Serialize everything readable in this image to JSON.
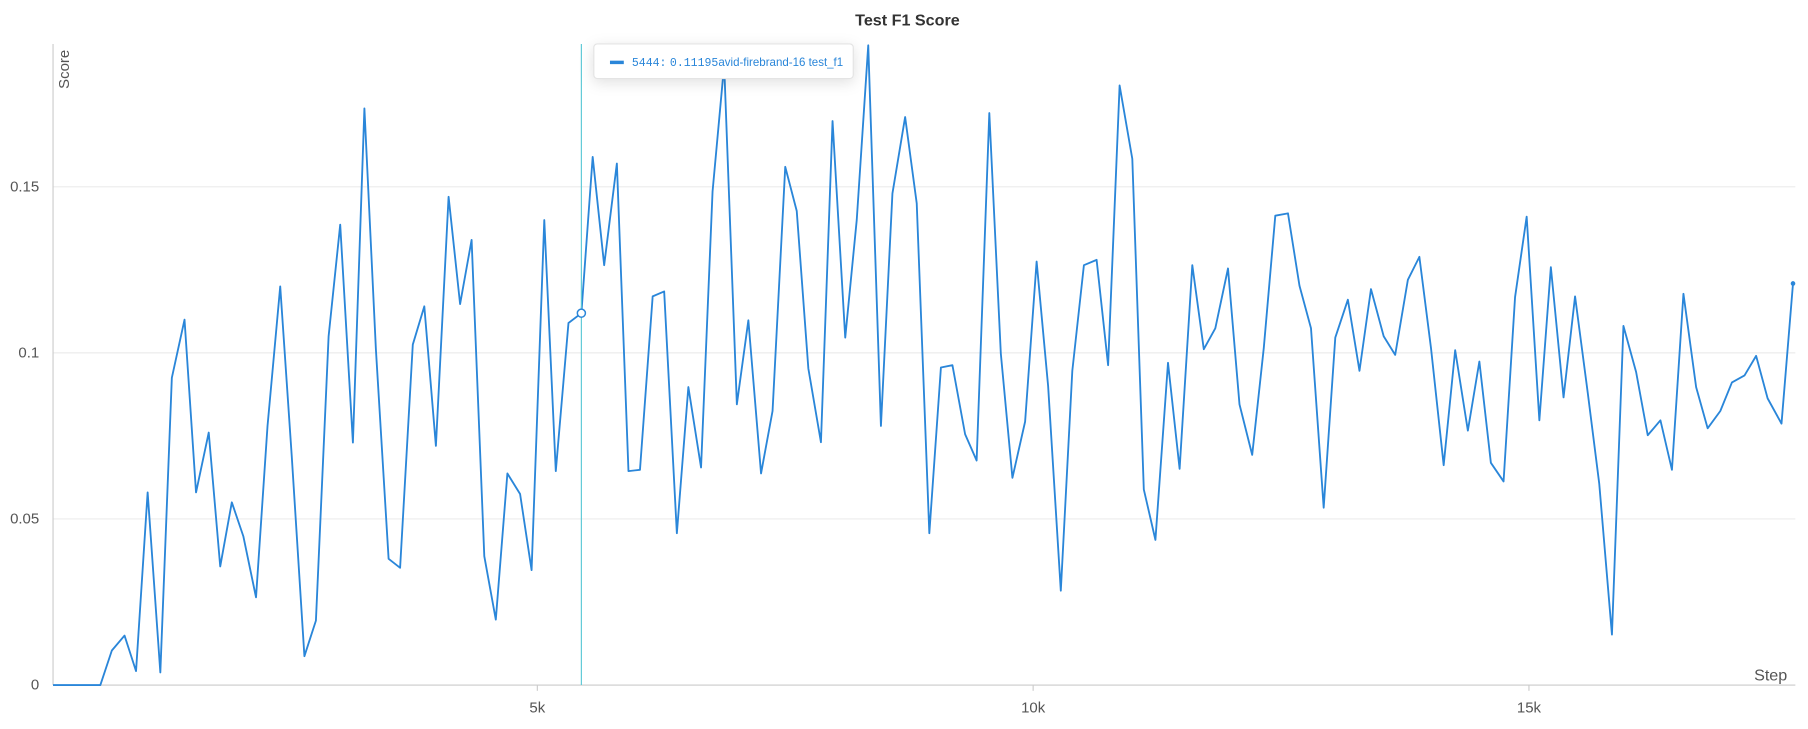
{
  "chart_data": {
    "type": "line",
    "title": "Test F1 Score",
    "y_label": "Score",
    "x_label": "Step",
    "x": [
      116,
      593,
      709,
      837,
      953,
      1070,
      1198,
      1314,
      1442,
      1558,
      1686,
      1802,
      1919,
      2035,
      2163,
      2279,
      2407,
      2523,
      2651,
      2767,
      2895,
      3012,
      3140,
      3256,
      3372,
      3500,
      3616,
      3744,
      3860,
      3977,
      4105,
      4221,
      4337,
      4465,
      4581,
      4698,
      4826,
      4942,
      5070,
      5186,
      5314,
      5444,
      5558,
      5674,
      5802,
      5919,
      6035,
      6163,
      6279,
      6407,
      6523,
      6651,
      6767,
      6884,
      7012,
      7128,
      7256,
      7372,
      7500,
      7616,
      7733,
      7860,
      7977,
      8105,
      8221,
      8337,
      8465,
      8581,
      8709,
      8826,
      8953,
      9070,
      9186,
      9314,
      9430,
      9558,
      9674,
      9791,
      9919,
      10035,
      10151,
      10279,
      10395,
      10512,
      10640,
      10756,
      10872,
      11000,
      11116,
      11233,
      11360,
      11477,
      11605,
      11721,
      11837,
      11965,
      12081,
      12209,
      12326,
      12442,
      12570,
      12686,
      12802,
      12930,
      13047,
      13174,
      13291,
      13407,
      13535,
      13651,
      13779,
      13895,
      14012,
      14140,
      14256,
      14384,
      14500,
      14616,
      14744,
      14860,
      14977,
      15105,
      15221,
      15349,
      15465,
      15593,
      15709,
      15837,
      15953,
      16081,
      16198,
      16326,
      16442,
      16558,
      16686,
      16802,
      16930,
      17047,
      17174,
      17291,
      17407,
      17547,
      17663
    ],
    "series": [
      {
        "name": "avid-firebrand-16 test_f1",
        "color": "#2a86d9",
        "values": [
          0,
          0,
          0.0104,
          0.0149,
          0.0042,
          0.058,
          0.0038,
          0.0925,
          0.11,
          0.058,
          0.076,
          0.0357,
          0.055,
          0.0448,
          0.0264,
          0.078,
          0.12,
          0.069,
          0.0087,
          0.0194,
          0.105,
          0.1386,
          0.073,
          0.1736,
          0.101,
          0.038,
          0.0353,
          0.1025,
          0.114,
          0.072,
          0.147,
          0.1147,
          0.134,
          0.0388,
          0.0197,
          0.0637,
          0.0575,
          0.0346,
          0.14,
          0.0644,
          0.109,
          0.11195,
          0.159,
          0.1264,
          0.157,
          0.0644,
          0.0648,
          0.117,
          0.1185,
          0.0457,
          0.0897,
          0.0655,
          0.1486,
          0.1867,
          0.0845,
          0.1098,
          0.0637,
          0.0825,
          0.156,
          0.1427,
          0.0953,
          0.0731,
          0.1698,
          0.1046,
          0.14,
          0.1926,
          0.078,
          0.148,
          0.171,
          0.145,
          0.0457,
          0.0956,
          0.0963,
          0.0755,
          0.0676,
          0.1722,
          0.0998,
          0.0624,
          0.0793,
          0.1275,
          0.09,
          0.0284,
          0.0946,
          0.1264,
          0.128,
          0.0963,
          0.1805,
          0.1584,
          0.0589,
          0.0437,
          0.097,
          0.0651,
          0.1264,
          0.1011,
          0.1074,
          0.1254,
          0.0845,
          0.0693,
          0.1015,
          0.1413,
          0.142,
          0.1202,
          0.1074,
          0.0534,
          0.1046,
          0.116,
          0.0946,
          0.1192,
          0.105,
          0.0994,
          0.122,
          0.1289,
          0.1015,
          0.0662,
          0.1008,
          0.0766,
          0.0974,
          0.0669,
          0.0613,
          0.1168,
          0.141,
          0.0797,
          0.1258,
          0.0866,
          0.117,
          0.088,
          0.0606,
          0.0152,
          0.1081,
          0.0942,
          0.0752,
          0.0797,
          0.0648,
          0.1178,
          0.0897,
          0.0773,
          0.0825,
          0.0911,
          0.0932,
          0.0991,
          0.0863,
          0.0787,
          0.1209
        ]
      }
    ],
    "xlim": [
      116,
      17663
    ],
    "ylim": [
      0,
      0.193
    ],
    "xticks": [
      {
        "value": 5000,
        "label": "5k"
      },
      {
        "value": 10000,
        "label": "10k"
      },
      {
        "value": 15000,
        "label": "15k"
      }
    ],
    "yticks": [
      0,
      0.05,
      0.1,
      0.15
    ],
    "grid": true,
    "hover": {
      "x": 5444,
      "y": 0.11195,
      "color": "#5bc8d6"
    }
  }
}
